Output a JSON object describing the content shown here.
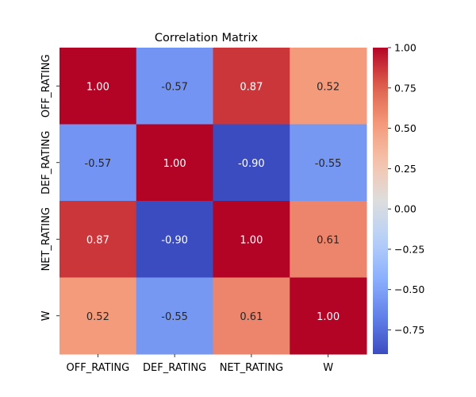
{
  "chart_data": {
    "type": "heatmap",
    "title": "Correlation Matrix",
    "rows": [
      "OFF_RATING",
      "DEF_RATING",
      "NET_RATING",
      "W"
    ],
    "cols": [
      "OFF_RATING",
      "DEF_RATING",
      "NET_RATING",
      "W"
    ],
    "values": [
      [
        1.0,
        -0.57,
        0.87,
        0.52
      ],
      [
        -0.57,
        1.0,
        -0.9,
        -0.55
      ],
      [
        0.87,
        -0.9,
        1.0,
        0.61
      ],
      [
        0.52,
        -0.55,
        0.61,
        1.0
      ]
    ],
    "value_labels": [
      [
        "1.00",
        "-0.57",
        "0.87",
        "0.52"
      ],
      [
        "-0.57",
        "1.00",
        "-0.90",
        "-0.55"
      ],
      [
        "0.87",
        "-0.90",
        "1.00",
        "0.61"
      ],
      [
        "0.52",
        "-0.55",
        "0.61",
        "1.00"
      ]
    ],
    "colormap": "coolwarm",
    "vmin": -0.9,
    "vmax": 1.0,
    "colorbar": {
      "ticks": [
        1.0,
        0.75,
        0.5,
        0.25,
        0.0,
        -0.25,
        -0.5,
        -0.75
      ],
      "tick_labels": [
        "1.00",
        "0.75",
        "0.50",
        "0.25",
        "0.00",
        "−0.25",
        "−0.50",
        "−0.75"
      ],
      "placement": "right"
    },
    "grid": false
  }
}
